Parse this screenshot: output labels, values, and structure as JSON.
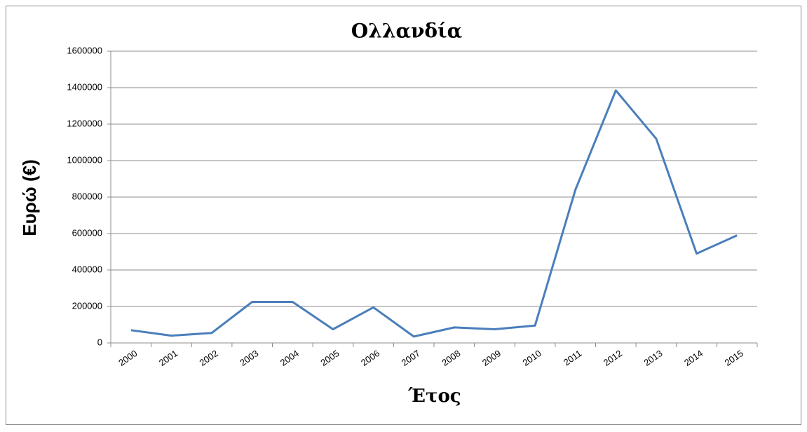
{
  "chart_data": {
    "type": "line",
    "title": "Ολλανδία",
    "y_label": "Ευρώ (€)",
    "x_label": "Έτος",
    "categories": [
      "2000",
      "2001",
      "2002",
      "2003",
      "2004",
      "2005",
      "2006",
      "2007",
      "2008",
      "2009",
      "2010",
      "2011",
      "2012",
      "2013",
      "2014",
      "2015"
    ],
    "series": [
      {
        "name": "Ολλανδία",
        "color": "#4a7ebb",
        "values": [
          70000,
          40000,
          55000,
          225000,
          225000,
          75000,
          195000,
          35000,
          85000,
          75000,
          95000,
          840000,
          1385000,
          1120000,
          490000,
          590000
        ]
      }
    ],
    "ylim": [
      0,
      1600000
    ],
    "yticks": [
      0,
      200000,
      400000,
      600000,
      800000,
      1000000,
      1200000,
      1400000,
      1600000
    ],
    "grid": true
  }
}
